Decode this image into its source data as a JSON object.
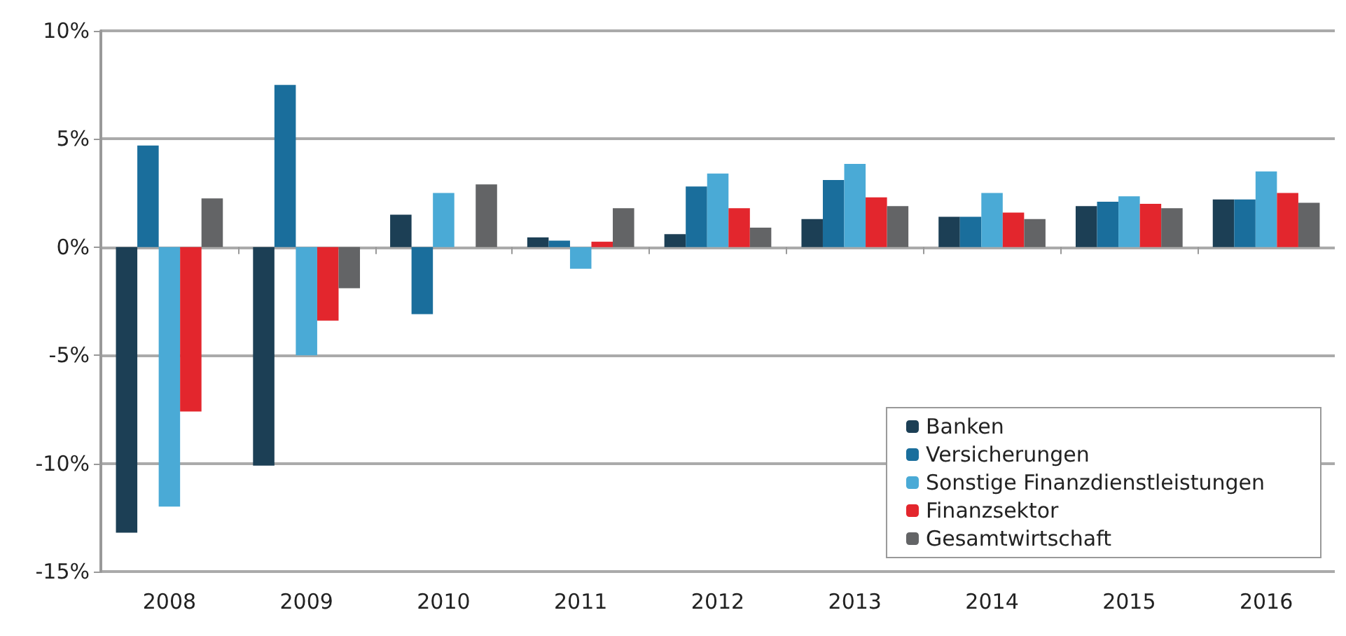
{
  "chart_data": {
    "type": "bar",
    "categories": [
      "2008",
      "2009",
      "2010",
      "2011",
      "2012",
      "2013",
      "2014",
      "2015",
      "2016"
    ],
    "series": [
      {
        "name": "Banken",
        "color": "#1c3f55",
        "values": [
          -13.2,
          -10.1,
          1.5,
          0.45,
          0.6,
          1.3,
          1.4,
          1.9,
          2.2
        ]
      },
      {
        "name": "Versicherungen",
        "color": "#1a6e9c",
        "values": [
          4.7,
          7.5,
          -3.1,
          0.3,
          2.8,
          3.1,
          1.4,
          2.1,
          2.2
        ]
      },
      {
        "name": "Sonstige Finanzdienstleistungen",
        "color": "#4aaad6",
        "values": [
          -12.0,
          -5.0,
          2.5,
          -1.0,
          3.4,
          3.85,
          2.5,
          2.35,
          3.5
        ]
      },
      {
        "name": "Finanzsektor",
        "color": "#e3262d",
        "values": [
          -7.6,
          -3.4,
          null,
          0.25,
          1.8,
          2.3,
          1.6,
          2.0,
          2.5
        ]
      },
      {
        "name": "Gesamtwirtschaft",
        "color": "#636466",
        "values": [
          2.25,
          -1.9,
          2.9,
          1.8,
          0.9,
          1.9,
          1.3,
          1.8,
          2.05
        ]
      }
    ],
    "ylim": [
      -15,
      10
    ],
    "yticks": [
      {
        "value": -15,
        "label": "-15%"
      },
      {
        "value": -10,
        "label": "-10%"
      },
      {
        "value": -5,
        "label": "-5%"
      },
      {
        "value": 0,
        "label": "0%"
      },
      {
        "value": 5,
        "label": "5%"
      },
      {
        "value": 10,
        "label": "10%"
      }
    ],
    "grid": "y",
    "legend": "bottom right"
  }
}
